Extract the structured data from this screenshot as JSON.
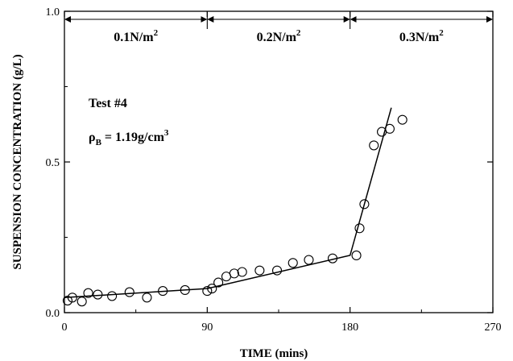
{
  "chart_data": {
    "type": "scatter",
    "xlabel": "TIME (mins)",
    "ylabel": "SUSPENSION CONCENTRATION (g/L)",
    "xlim": [
      0,
      270
    ],
    "ylim": [
      0,
      1
    ],
    "x_ticks": [
      "0",
      "90",
      "180",
      "270"
    ],
    "y_ticks": [
      "0.0",
      "0.5",
      "1.0"
    ],
    "x_tick_values": [
      0,
      90,
      180,
      270
    ],
    "y_tick_values": [
      0,
      0.5,
      1.0
    ],
    "grid": false,
    "regions": [
      {
        "start": 0,
        "end": 90,
        "label": "0.1N/m",
        "sup": "2"
      },
      {
        "start": 90,
        "end": 180,
        "label": "0.2N/m",
        "sup": "2"
      },
      {
        "start": 180,
        "end": 270,
        "label": "0.3N/m",
        "sup": "2"
      }
    ],
    "annotations": {
      "test": "Test #4",
      "rho_symbol": "ρ",
      "rho_sub": "B",
      "rho_value": " = 1.19g/cm",
      "rho_sup": "3"
    },
    "series": [
      {
        "points": [
          [
            2,
            0.04
          ],
          [
            5,
            0.05
          ],
          [
            11,
            0.037
          ],
          [
            15,
            0.065
          ],
          [
            21,
            0.06
          ],
          [
            30,
            0.055
          ],
          [
            41,
            0.068
          ],
          [
            52,
            0.05
          ],
          [
            62,
            0.072
          ],
          [
            76,
            0.075
          ],
          [
            90,
            0.072
          ],
          [
            93,
            0.08
          ],
          [
            97,
            0.1
          ],
          [
            102,
            0.12
          ],
          [
            107,
            0.13
          ],
          [
            112,
            0.135
          ],
          [
            123,
            0.14
          ],
          [
            134,
            0.14
          ],
          [
            144,
            0.165
          ],
          [
            154,
            0.175
          ],
          [
            169,
            0.18
          ],
          [
            184,
            0.19
          ],
          [
            186,
            0.28
          ],
          [
            189,
            0.36
          ],
          [
            195,
            0.555
          ],
          [
            200,
            0.6
          ],
          [
            205,
            0.61
          ],
          [
            213,
            0.64
          ]
        ]
      }
    ],
    "fit_line": [
      [
        0,
        0.05
      ],
      [
        90,
        0.08
      ],
      [
        180,
        0.19
      ],
      [
        206,
        0.68
      ]
    ]
  }
}
